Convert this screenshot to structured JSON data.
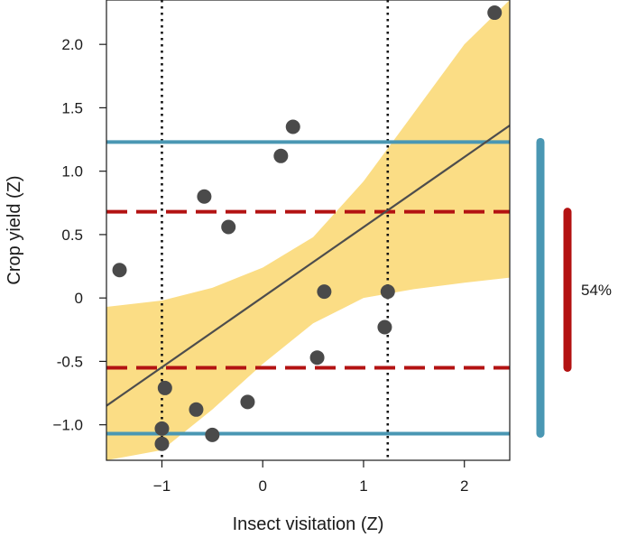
{
  "chart_data": {
    "type": "scatter",
    "xlabel": "Insect visitation (Z)",
    "ylabel": "Crop yield (Z)",
    "xlim": [
      -1.55,
      2.45
    ],
    "ylim": [
      -1.28,
      2.35
    ],
    "x_ticks": [
      -1,
      0,
      1,
      2
    ],
    "x_tick_labels": [
      "−1",
      "0",
      "1",
      "2"
    ],
    "y_ticks": [
      -1.0,
      -0.5,
      0,
      0.5,
      1.0,
      1.5,
      2.0
    ],
    "y_tick_labels": [
      "−1.0",
      "-0.5",
      "0",
      "0.5",
      "1.0",
      "1.5",
      "2.0"
    ],
    "points": [
      {
        "x": -1.42,
        "y": 0.22
      },
      {
        "x": -1.0,
        "y": -1.03
      },
      {
        "x": -1.0,
        "y": -1.15
      },
      {
        "x": -0.97,
        "y": -0.71
      },
      {
        "x": -0.66,
        "y": -0.88
      },
      {
        "x": -0.58,
        "y": 0.8
      },
      {
        "x": -0.5,
        "y": -1.08
      },
      {
        "x": -0.34,
        "y": 0.56
      },
      {
        "x": -0.15,
        "y": -0.82
      },
      {
        "x": 0.18,
        "y": 1.12
      },
      {
        "x": 0.3,
        "y": 1.35
      },
      {
        "x": 0.54,
        "y": -0.47
      },
      {
        "x": 0.61,
        "y": 0.05
      },
      {
        "x": 1.21,
        "y": -0.23
      },
      {
        "x": 1.24,
        "y": 0.05
      },
      {
        "x": 2.3,
        "y": 2.25
      }
    ],
    "fit_line": {
      "x": [
        -1.55,
        2.45
      ],
      "y": [
        -0.85,
        1.36
      ]
    },
    "confidence_band": {
      "x": [
        -1.55,
        -1.0,
        -0.5,
        0.0,
        0.5,
        1.0,
        1.5,
        2.0,
        2.45
      ],
      "upper": [
        -0.07,
        -0.02,
        0.08,
        0.24,
        0.48,
        0.92,
        1.46,
        2.0,
        2.35
      ],
      "lower": [
        -1.28,
        -1.2,
        -0.88,
        -0.52,
        -0.2,
        0.0,
        0.07,
        0.12,
        0.16
      ]
    },
    "vertical_lines": [
      -1.0,
      1.24
    ],
    "horizontal_lines_outer": [
      1.23,
      -1.07
    ],
    "horizontal_lines_inner": [
      0.68,
      -0.55
    ],
    "annotation": "54%",
    "colors": {
      "points": "#4a4a4a",
      "fit_line": "#4d4d4d",
      "band": "#fbdd85",
      "outer_lines": "#4a97b3",
      "inner_lines": "#b31212",
      "vertical_lines": "#111111"
    },
    "grid": false
  }
}
